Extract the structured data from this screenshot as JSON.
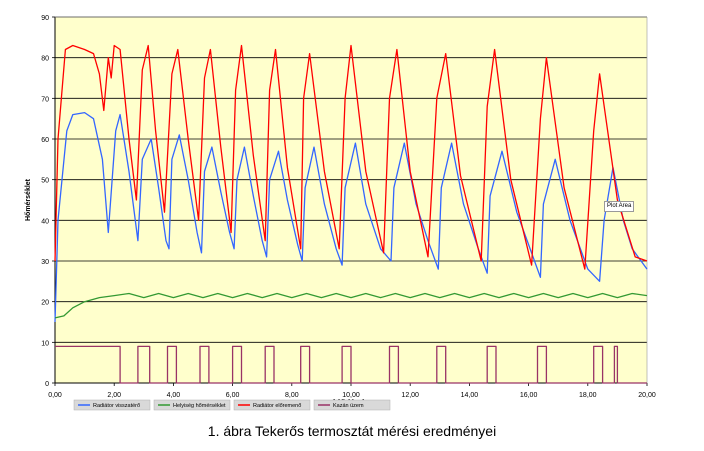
{
  "chart_data": {
    "type": "line",
    "xlabel": "Idő (óra)",
    "ylabel": "Hőmérséklet",
    "xlim": [
      0,
      20
    ],
    "ylim": [
      0,
      90
    ],
    "x_ticks": [
      "0,00",
      "2,00",
      "4,00",
      "6,00",
      "8,00",
      "10,00",
      "12,00",
      "14,00",
      "16,00",
      "18,00",
      "20,00"
    ],
    "y_ticks": [
      "0",
      "10",
      "20",
      "30",
      "40",
      "50",
      "60",
      "70",
      "80",
      "90"
    ],
    "grid": "horizontal",
    "legend_position": "bottom",
    "background": "#ffffcc",
    "tooltip": "Plot Area",
    "series": [
      {
        "name": "Radiátor visszatérő",
        "color": "#3366ff",
        "points": [
          [
            0,
            15
          ],
          [
            0.1,
            40
          ],
          [
            0.4,
            62
          ],
          [
            0.6,
            66
          ],
          [
            1.0,
            66.5
          ],
          [
            1.3,
            65
          ],
          [
            1.6,
            55
          ],
          [
            1.8,
            37
          ],
          [
            2.05,
            62
          ],
          [
            2.2,
            66
          ],
          [
            2.5,
            52
          ],
          [
            2.8,
            35
          ],
          [
            2.95,
            55
          ],
          [
            3.25,
            60
          ],
          [
            3.5,
            48
          ],
          [
            3.75,
            35
          ],
          [
            3.85,
            33
          ],
          [
            3.95,
            55
          ],
          [
            4.2,
            61
          ],
          [
            4.5,
            50
          ],
          [
            4.8,
            37
          ],
          [
            4.95,
            32
          ],
          [
            5.05,
            52
          ],
          [
            5.3,
            58
          ],
          [
            5.6,
            47
          ],
          [
            5.9,
            37
          ],
          [
            6.05,
            33
          ],
          [
            6.15,
            50
          ],
          [
            6.4,
            58
          ],
          [
            6.7,
            46
          ],
          [
            7.0,
            35
          ],
          [
            7.15,
            31
          ],
          [
            7.25,
            50
          ],
          [
            7.55,
            57
          ],
          [
            7.85,
            45
          ],
          [
            8.2,
            34
          ],
          [
            8.35,
            30
          ],
          [
            8.45,
            48
          ],
          [
            8.75,
            58
          ],
          [
            9.1,
            44
          ],
          [
            9.5,
            33
          ],
          [
            9.7,
            29
          ],
          [
            9.8,
            48
          ],
          [
            10.15,
            59
          ],
          [
            10.5,
            44
          ],
          [
            11.0,
            33
          ],
          [
            11.35,
            30
          ],
          [
            11.45,
            48
          ],
          [
            11.8,
            59
          ],
          [
            12.2,
            44
          ],
          [
            12.6,
            35
          ],
          [
            12.95,
            28
          ],
          [
            13.05,
            48
          ],
          [
            13.4,
            59
          ],
          [
            13.8,
            44
          ],
          [
            14.3,
            33
          ],
          [
            14.6,
            27
          ],
          [
            14.7,
            46
          ],
          [
            15.1,
            57
          ],
          [
            15.6,
            42
          ],
          [
            16.1,
            32
          ],
          [
            16.4,
            26
          ],
          [
            16.5,
            44
          ],
          [
            16.9,
            55
          ],
          [
            17.4,
            40
          ],
          [
            18.0,
            28
          ],
          [
            18.4,
            25
          ],
          [
            18.55,
            40
          ],
          [
            18.85,
            53
          ],
          [
            19.2,
            40
          ],
          [
            19.5,
            33
          ],
          [
            20.0,
            28
          ]
        ]
      },
      {
        "name": "Helyiség hőmérséklet",
        "color": "#339933",
        "points": [
          [
            0,
            16
          ],
          [
            0.3,
            16.5
          ],
          [
            0.6,
            18.5
          ],
          [
            1.0,
            20
          ],
          [
            1.5,
            21
          ],
          [
            2.0,
            21.5
          ],
          [
            2.5,
            22
          ],
          [
            3.0,
            21
          ],
          [
            3.5,
            22
          ],
          [
            4.0,
            21
          ],
          [
            4.5,
            22
          ],
          [
            5.0,
            21
          ],
          [
            5.5,
            22
          ],
          [
            6.0,
            21
          ],
          [
            6.5,
            22
          ],
          [
            7.0,
            21
          ],
          [
            7.5,
            22
          ],
          [
            8.0,
            21
          ],
          [
            8.5,
            22
          ],
          [
            9.0,
            21
          ],
          [
            9.5,
            22
          ],
          [
            10.0,
            21
          ],
          [
            10.5,
            22
          ],
          [
            11.0,
            21
          ],
          [
            11.5,
            22
          ],
          [
            12.0,
            21
          ],
          [
            12.5,
            22
          ],
          [
            13.0,
            21
          ],
          [
            13.5,
            22
          ],
          [
            14.0,
            21
          ],
          [
            14.5,
            22
          ],
          [
            15.0,
            21
          ],
          [
            15.5,
            22
          ],
          [
            16.0,
            21
          ],
          [
            16.5,
            22
          ],
          [
            17.0,
            21
          ],
          [
            17.5,
            22
          ],
          [
            18.0,
            21
          ],
          [
            18.5,
            22
          ],
          [
            19.0,
            21
          ],
          [
            19.5,
            22
          ],
          [
            20.0,
            21.5
          ]
        ]
      },
      {
        "name": "Radiátor előremenő",
        "color": "#ff0000",
        "points": [
          [
            0,
            30
          ],
          [
            0.1,
            60
          ],
          [
            0.35,
            82
          ],
          [
            0.6,
            83
          ],
          [
            1.0,
            82
          ],
          [
            1.3,
            81
          ],
          [
            1.5,
            76
          ],
          [
            1.65,
            67
          ],
          [
            1.8,
            80
          ],
          [
            1.9,
            75
          ],
          [
            2.0,
            83
          ],
          [
            2.2,
            82
          ],
          [
            2.5,
            60
          ],
          [
            2.75,
            45
          ],
          [
            2.95,
            77
          ],
          [
            3.15,
            83
          ],
          [
            3.4,
            62
          ],
          [
            3.7,
            42
          ],
          [
            3.95,
            76
          ],
          [
            4.15,
            82
          ],
          [
            4.5,
            60
          ],
          [
            4.85,
            40
          ],
          [
            5.05,
            75
          ],
          [
            5.25,
            82
          ],
          [
            5.6,
            58
          ],
          [
            5.95,
            37
          ],
          [
            6.1,
            72
          ],
          [
            6.3,
            83
          ],
          [
            6.7,
            56
          ],
          [
            7.1,
            35
          ],
          [
            7.25,
            72
          ],
          [
            7.45,
            82
          ],
          [
            7.85,
            53
          ],
          [
            8.3,
            33
          ],
          [
            8.4,
            70
          ],
          [
            8.6,
            81
          ],
          [
            9.1,
            52
          ],
          [
            9.6,
            33
          ],
          [
            9.8,
            70
          ],
          [
            10.0,
            83
          ],
          [
            10.5,
            52
          ],
          [
            11.1,
            32
          ],
          [
            11.3,
            70
          ],
          [
            11.55,
            82
          ],
          [
            12.0,
            52
          ],
          [
            12.6,
            31
          ],
          [
            12.9,
            70
          ],
          [
            13.2,
            81
          ],
          [
            13.7,
            51
          ],
          [
            14.4,
            30
          ],
          [
            14.6,
            68
          ],
          [
            14.85,
            82
          ],
          [
            15.4,
            50
          ],
          [
            16.1,
            29
          ],
          [
            16.4,
            65
          ],
          [
            16.6,
            80
          ],
          [
            17.2,
            48
          ],
          [
            17.9,
            28
          ],
          [
            18.2,
            62
          ],
          [
            18.4,
            76
          ],
          [
            19.0,
            45
          ],
          [
            19.6,
            31
          ],
          [
            20.0,
            30
          ]
        ]
      },
      {
        "name": "Kazán üzem",
        "color": "#993366",
        "points": [
          [
            0,
            9
          ],
          [
            2.2,
            9
          ],
          [
            2.2,
            0
          ],
          [
            2.8,
            0
          ],
          [
            2.8,
            9
          ],
          [
            3.2,
            9
          ],
          [
            3.2,
            0
          ],
          [
            3.8,
            0
          ],
          [
            3.8,
            9
          ],
          [
            4.1,
            9
          ],
          [
            4.1,
            0
          ],
          [
            4.9,
            0
          ],
          [
            4.9,
            9
          ],
          [
            5.2,
            9
          ],
          [
            5.2,
            0
          ],
          [
            6.0,
            0
          ],
          [
            6.0,
            9
          ],
          [
            6.3,
            9
          ],
          [
            6.3,
            0
          ],
          [
            7.1,
            0
          ],
          [
            7.1,
            9
          ],
          [
            7.4,
            9
          ],
          [
            7.4,
            0
          ],
          [
            8.3,
            0
          ],
          [
            8.3,
            9
          ],
          [
            8.6,
            9
          ],
          [
            8.6,
            0
          ],
          [
            9.7,
            0
          ],
          [
            9.7,
            9
          ],
          [
            10.0,
            9
          ],
          [
            10.0,
            0
          ],
          [
            11.3,
            0
          ],
          [
            11.3,
            9
          ],
          [
            11.6,
            9
          ],
          [
            11.6,
            0
          ],
          [
            12.9,
            0
          ],
          [
            12.9,
            9
          ],
          [
            13.2,
            9
          ],
          [
            13.2,
            0
          ],
          [
            14.6,
            0
          ],
          [
            14.6,
            9
          ],
          [
            14.9,
            9
          ],
          [
            14.9,
            0
          ],
          [
            16.3,
            0
          ],
          [
            16.3,
            9
          ],
          [
            16.6,
            9
          ],
          [
            16.6,
            0
          ],
          [
            18.2,
            0
          ],
          [
            18.2,
            9
          ],
          [
            18.5,
            9
          ],
          [
            18.5,
            0
          ],
          [
            18.9,
            0
          ],
          [
            18.9,
            9
          ],
          [
            19.0,
            9
          ],
          [
            19.0,
            0
          ],
          [
            20.0,
            0
          ]
        ]
      }
    ]
  },
  "caption": "1. ábra  Tekerős termosztát mérési eredményei"
}
